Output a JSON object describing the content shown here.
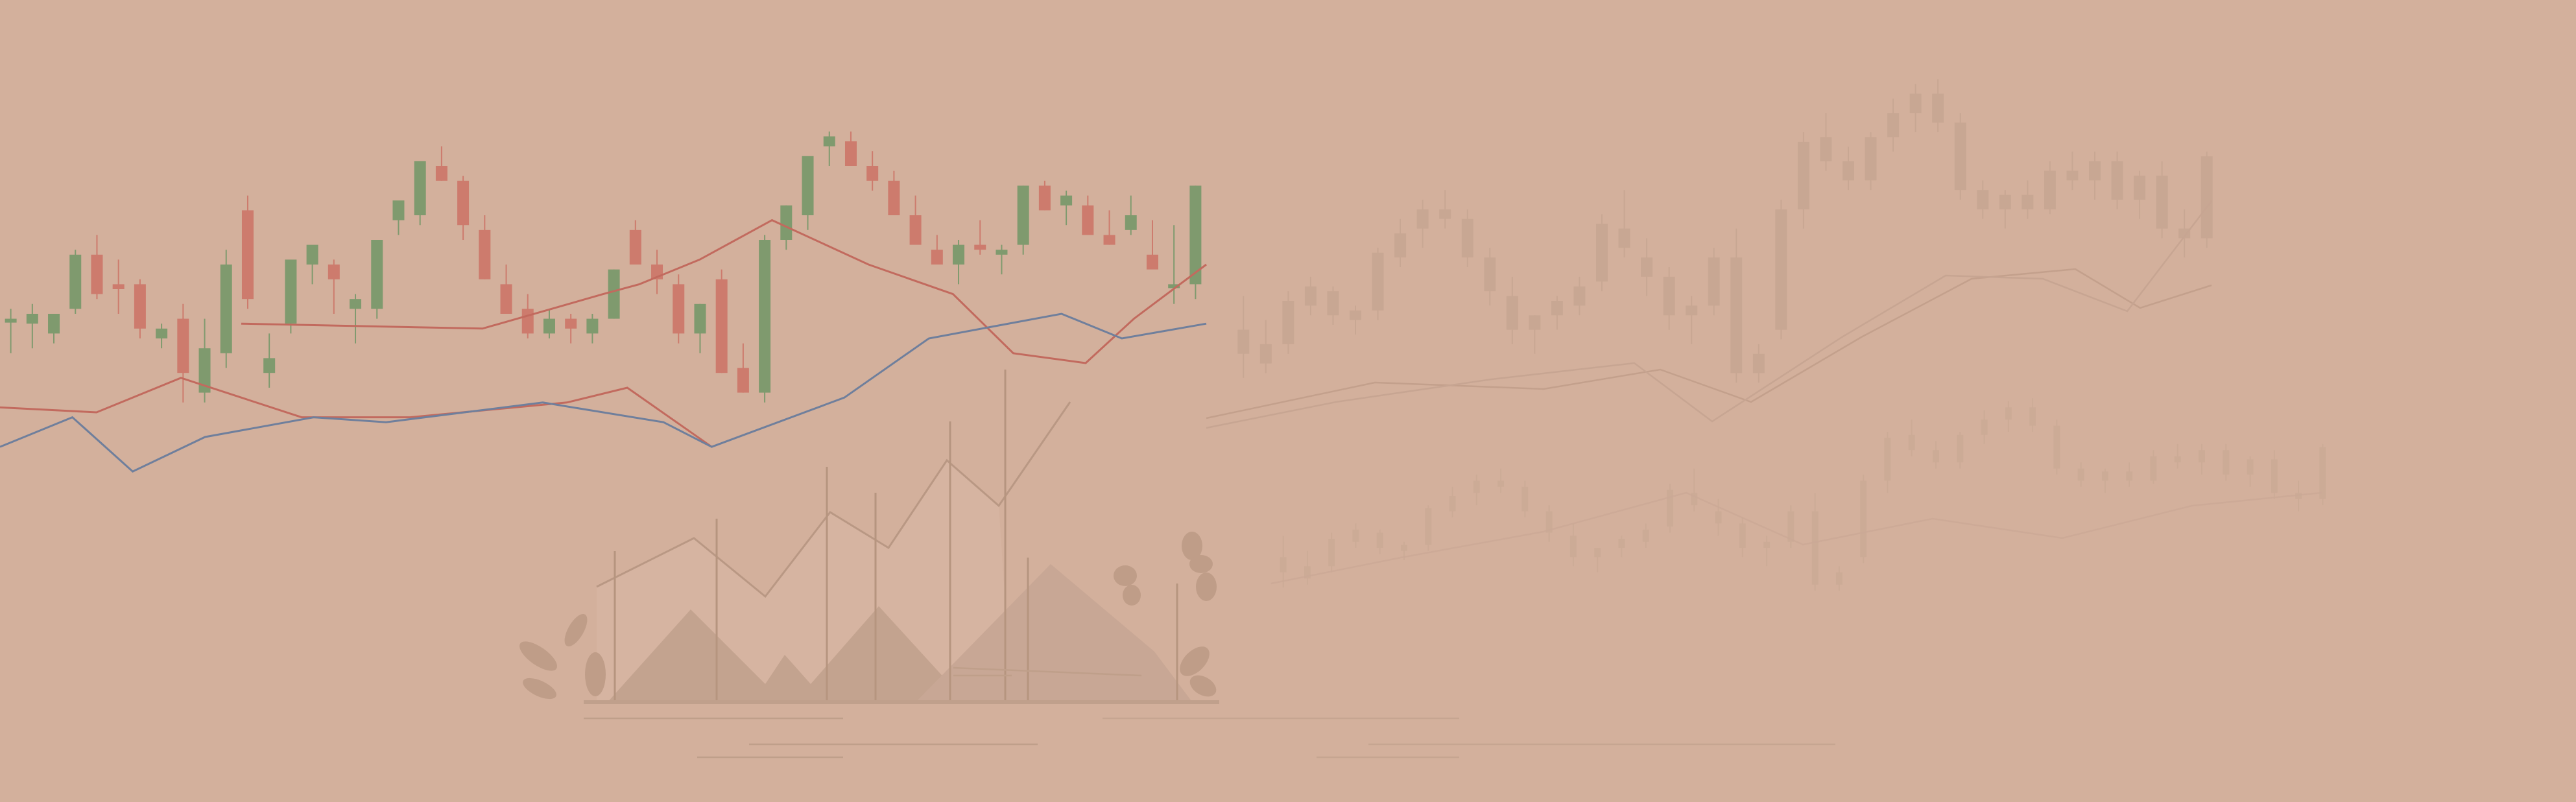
{
  "colors": {
    "background": "#d3b09c",
    "bullish": "#7f9a6e",
    "bearish": "#cd7b6d",
    "line_red": "#c26a5e",
    "line_blue": "#6f7f9c",
    "mountain": "#c3a38f"
  },
  "chart_data": [
    {
      "type": "candlestick",
      "title": "",
      "xlabel": "",
      "ylabel": "",
      "grid": false,
      "ylim": [
        0,
        100
      ],
      "series": [
        {
          "kind": "ohlc",
          "values": [
            [
              59,
              61,
              52,
              59
            ],
            [
              58,
              62,
              53,
              60
            ],
            [
              56,
              58,
              54,
              60
            ],
            [
              61,
              73,
              60,
              72
            ],
            [
              72,
              76,
              63,
              64
            ],
            [
              66,
              71,
              60,
              65
            ],
            [
              66,
              67,
              55,
              57
            ],
            [
              55,
              58,
              53,
              57
            ],
            [
              59,
              62,
              42,
              48
            ],
            [
              44,
              59,
              42,
              53
            ],
            [
              52,
              73,
              49,
              70
            ],
            [
              81,
              84,
              61,
              63
            ],
            [
              48,
              56,
              45,
              51
            ],
            [
              58,
              70,
              56,
              71
            ],
            [
              70,
              72,
              66,
              74
            ],
            [
              70,
              71,
              60,
              67
            ],
            [
              61,
              64,
              54,
              63
            ],
            [
              61,
              75,
              59,
              75
            ],
            [
              79,
              81,
              76,
              83
            ],
            [
              80,
              89,
              78,
              91
            ],
            [
              90,
              94,
              87,
              87
            ],
            [
              87,
              88,
              75,
              78
            ],
            [
              77,
              80,
              67,
              67
            ],
            [
              66,
              70,
              61,
              60
            ],
            [
              61,
              64,
              55,
              56
            ],
            [
              56,
              61,
              55,
              59
            ],
            [
              59,
              60,
              54,
              57
            ],
            [
              56,
              60,
              54,
              59
            ],
            [
              59,
              69,
              59,
              69
            ],
            [
              77,
              79,
              70,
              70
            ],
            [
              70,
              73,
              64,
              67
            ],
            [
              66,
              68,
              54,
              56
            ],
            [
              56,
              62,
              52,
              62
            ],
            [
              67,
              69,
              48,
              48
            ],
            [
              49,
              54,
              44,
              44
            ],
            [
              44,
              76,
              42,
              75
            ],
            [
              75,
              82,
              73,
              82
            ],
            [
              80,
              89,
              77,
              92
            ],
            [
              94,
              97,
              90,
              96
            ],
            [
              95,
              97,
              91,
              90
            ],
            [
              90,
              93,
              85,
              87
            ],
            [
              87,
              89,
              80,
              80
            ],
            [
              80,
              84,
              76,
              74
            ],
            [
              73,
              76,
              70,
              70
            ],
            [
              70,
              75,
              66,
              74
            ],
            [
              74,
              79,
              72,
              73
            ],
            [
              72,
              74,
              68,
              73
            ],
            [
              74,
              86,
              72,
              86
            ],
            [
              86,
              87,
              81,
              81
            ],
            [
              82,
              85,
              78,
              84
            ],
            [
              82,
              84,
              76,
              76
            ],
            [
              76,
              81,
              74,
              74
            ],
            [
              77,
              84,
              76,
              80
            ],
            [
              72,
              79,
              70,
              69
            ],
            [
              66,
              78,
              62,
              66
            ],
            [
              66,
              86,
              63,
              86
            ]
          ]
        },
        {
          "kind": "line",
          "color_key": "line_red",
          "values": [
            [
              0,
              41
            ],
            [
              8,
              40
            ],
            [
              15,
              47
            ],
            [
              20,
              43
            ],
            [
              25,
              39
            ],
            [
              34,
              39
            ],
            [
              47,
              42
            ],
            [
              52,
              45
            ],
            [
              59,
              33
            ]
          ]
        },
        {
          "kind": "line",
          "color_key": "line_red",
          "values": [
            [
              20,
              58
            ],
            [
              40,
              57
            ],
            [
              50,
              64
            ],
            [
              53,
              66
            ],
            [
              58,
              71
            ],
            [
              64,
              79
            ],
            [
              72,
              70
            ],
            [
              79,
              64
            ],
            [
              84,
              52
            ],
            [
              90,
              50
            ],
            [
              94,
              59
            ],
            [
              100,
              70
            ]
          ]
        },
        {
          "kind": "line",
          "color_key": "line_blue",
          "values": [
            [
              0,
              33
            ],
            [
              6,
              39
            ],
            [
              11,
              28
            ],
            [
              17,
              35
            ],
            [
              26,
              39
            ],
            [
              32,
              38
            ],
            [
              45,
              42
            ],
            [
              55,
              38
            ],
            [
              59,
              33
            ],
            [
              70,
              43
            ],
            [
              77,
              55
            ],
            [
              88,
              60
            ],
            [
              93,
              55
            ],
            [
              100,
              58
            ]
          ]
        }
      ]
    },
    {
      "type": "candlestick",
      "title": "",
      "xlabel": "",
      "ylabel": "",
      "grid": false,
      "style": "faded background",
      "series": [
        {
          "kind": "ohlc",
          "values": [
            [
              50,
              62,
              45,
              55
            ],
            [
              48,
              57,
              46,
              52
            ],
            [
              52,
              63,
              50,
              61
            ],
            [
              60,
              66,
              58,
              64
            ],
            [
              63,
              64,
              56,
              58
            ],
            [
              57,
              60,
              54,
              59
            ],
            [
              59,
              72,
              57,
              71
            ],
            [
              70,
              78,
              68,
              75
            ],
            [
              76,
              82,
              72,
              80
            ],
            [
              80,
              84,
              76,
              78
            ],
            [
              78,
              80,
              68,
              70
            ],
            [
              70,
              72,
              60,
              63
            ],
            [
              62,
              66,
              52,
              55
            ],
            [
              55,
              58,
              50,
              58
            ],
            [
              58,
              62,
              55,
              61
            ],
            [
              60,
              66,
              58,
              64
            ],
            [
              65,
              79,
              63,
              77
            ],
            [
              76,
              84,
              70,
              72
            ],
            [
              70,
              74,
              62,
              66
            ],
            [
              66,
              68,
              55,
              58
            ],
            [
              58,
              62,
              52,
              60
            ],
            [
              60,
              72,
              58,
              70
            ],
            [
              70,
              76,
              44,
              46
            ],
            [
              46,
              52,
              44,
              50
            ],
            [
              55,
              82,
              53,
              80
            ],
            [
              80,
              96,
              76,
              94
            ],
            [
              95,
              100,
              88,
              90
            ],
            [
              90,
              93,
              84,
              86
            ],
            [
              86,
              96,
              84,
              95
            ],
            [
              95,
              103,
              92,
              100
            ],
            [
              100,
              106,
              96,
              104
            ],
            [
              104,
              107,
              96,
              98
            ],
            [
              98,
              100,
              82,
              84
            ],
            [
              84,
              86,
              78,
              80
            ],
            [
              80,
              84,
              76,
              83
            ],
            [
              83,
              86,
              78,
              80
            ],
            [
              80,
              90,
              79,
              88
            ],
            [
              88,
              92,
              84,
              86
            ],
            [
              86,
              92,
              82,
              90
            ],
            [
              90,
              92,
              80,
              82
            ],
            [
              82,
              88,
              78,
              87
            ],
            [
              87,
              90,
              74,
              76
            ],
            [
              76,
              80,
              70,
              74
            ],
            [
              74,
              92,
              72,
              91
            ]
          ]
        }
      ]
    }
  ]
}
